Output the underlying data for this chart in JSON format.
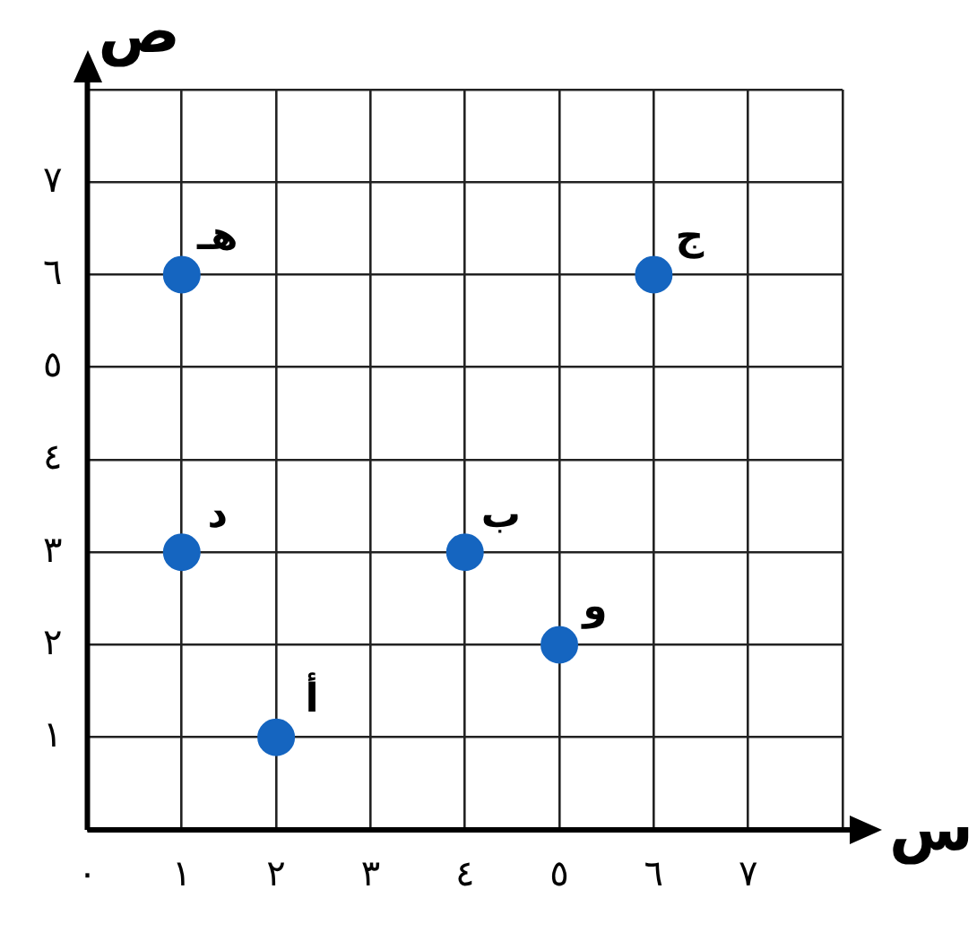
{
  "chart_data": {
    "type": "scatter",
    "xlabel": "س",
    "ylabel": "ص",
    "x": [
      2,
      4,
      6,
      1,
      1,
      5
    ],
    "values": [
      1,
      3,
      6,
      3,
      6,
      2
    ],
    "color": "#1565c0",
    "marker": "circle",
    "grid": true,
    "xlim": [
      0,
      8
    ],
    "ylim": [
      0,
      8
    ],
    "xticks": [
      {
        "value": 0,
        "label": "٠"
      },
      {
        "value": 1,
        "label": "١"
      },
      {
        "value": 2,
        "label": "٢"
      },
      {
        "value": 3,
        "label": "٣"
      },
      {
        "value": 4,
        "label": "٤"
      },
      {
        "value": 5,
        "label": "٥"
      },
      {
        "value": 6,
        "label": "٦"
      },
      {
        "value": 7,
        "label": "٧"
      },
      {
        "value": 8,
        "label": null
      }
    ],
    "yticks": [
      {
        "value": 0,
        "label": null
      },
      {
        "value": 1,
        "label": "١"
      },
      {
        "value": 2,
        "label": "٢"
      },
      {
        "value": 3,
        "label": "٣"
      },
      {
        "value": 4,
        "label": "٤"
      },
      {
        "value": 5,
        "label": "٥"
      },
      {
        "value": 6,
        "label": "٦"
      },
      {
        "value": 7,
        "label": "٧"
      },
      {
        "value": 8,
        "label": null
      }
    ],
    "annotations": [
      {
        "text": "أ",
        "x": 2,
        "y": 1
      },
      {
        "text": "ب",
        "x": 4,
        "y": 3
      },
      {
        "text": "ج",
        "x": 6,
        "y": 6
      },
      {
        "text": "د",
        "x": 1,
        "y": 3
      },
      {
        "text": "هـ",
        "x": 1,
        "y": 6
      },
      {
        "text": "و",
        "x": 5,
        "y": 2
      }
    ]
  }
}
